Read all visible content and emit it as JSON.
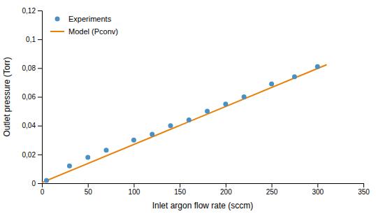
{
  "chart_data": {
    "type": "scatter",
    "xlabel": "Inlet argon flow rate (sccm)",
    "ylabel": "Outlet pressure (Torr)",
    "series": [
      {
        "name": "Experiments",
        "type": "scatter",
        "color": "#4a90c4",
        "marker": "circle",
        "x": [
          5,
          30,
          50,
          70,
          100,
          120,
          140,
          160,
          180,
          200,
          220,
          250,
          275,
          300
        ],
        "values": [
          0.002,
          0.012,
          0.018,
          0.023,
          0.03,
          0.034,
          0.04,
          0.044,
          0.05,
          0.055,
          0.06,
          0.069,
          0.074,
          0.081
        ]
      },
      {
        "name": "Model (Pconv)",
        "type": "line",
        "color": "#E8820A",
        "line_style": "solid",
        "x": [
          0,
          310
        ],
        "values": [
          0.0005,
          0.08234
        ]
      }
    ],
    "xlim": [
      0,
      350
    ],
    "ylim": [
      0,
      0.12
    ],
    "xticks": [
      0,
      50,
      100,
      150,
      200,
      250,
      300,
      350
    ],
    "yticks": [
      0,
      {
        "value": 0.02,
        "label": "0,02"
      },
      {
        "value": 0.04,
        "label": "0,04"
      },
      {
        "value": 0.06,
        "label": "0,06"
      },
      {
        "value": 0.08,
        "label": "0,08"
      },
      {
        "value": 0.1,
        "label": "0,1"
      },
      {
        "value": 0.12,
        "label": "0,12"
      }
    ],
    "grid": false,
    "legend": "upper left"
  }
}
